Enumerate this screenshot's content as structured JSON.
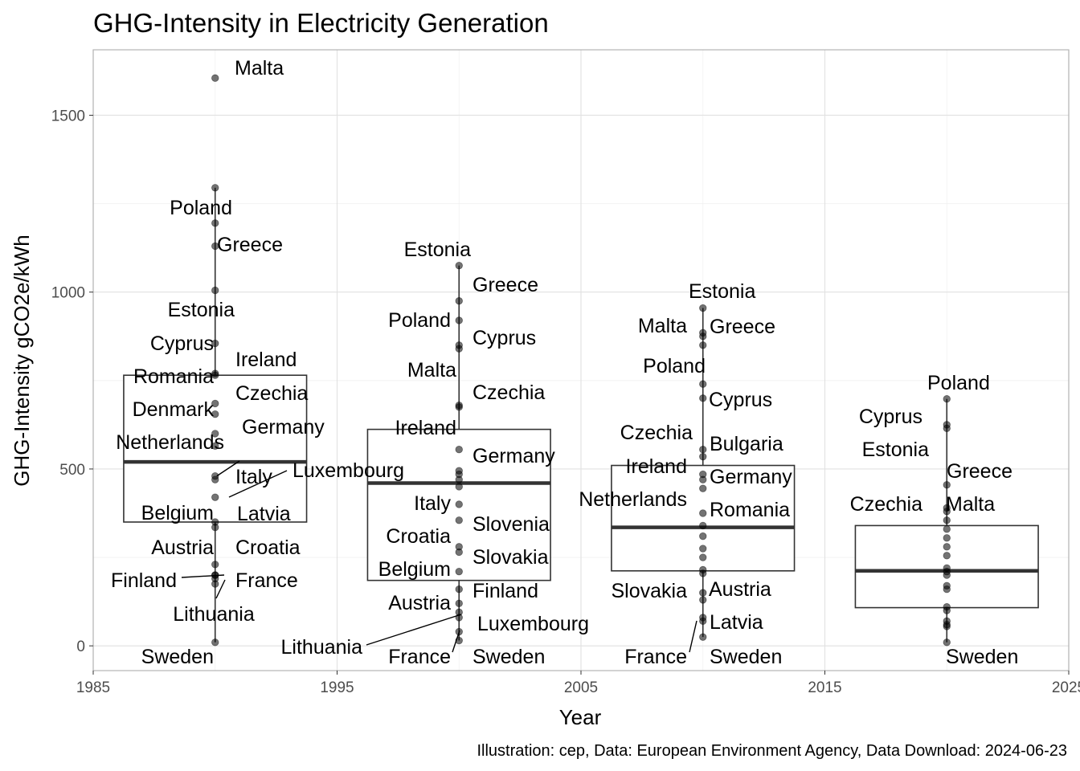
{
  "chart_data": {
    "type": "boxplot",
    "title": "GHG-Intensity in Electricity Generation",
    "xlabel": "Year",
    "ylabel": "GHG-Intensity gCO2e/kWh",
    "caption": "Illustration: cep, Data: European Environment Agency, Data Download: 2024-06-23",
    "xlim": [
      1985,
      2025
    ],
    "ylim": [
      -70,
      1685
    ],
    "x_ticks": [
      1985,
      1995,
      2005,
      2015,
      2025
    ],
    "y_ticks": [
      0,
      500,
      1000,
      1500
    ],
    "grid": true,
    "colors": {
      "box_median": "#333333",
      "points": "#000000",
      "grid": "#e1e1e1"
    },
    "groups": [
      {
        "year": 1990,
        "box": {
          "q1": 350,
          "median": 520,
          "q3": 765,
          "whisker_low": 10,
          "whisker_high": 1295
        },
        "points": [
          {
            "country": "Malta",
            "value": 1605
          },
          {
            "country": "",
            "value": 1295
          },
          {
            "country": "Poland",
            "value": 1195
          },
          {
            "country": "Greece",
            "value": 1130
          },
          {
            "country": "Estonia",
            "value": 1005
          },
          {
            "country": "Cyprus",
            "value": 855
          },
          {
            "country": "Ireland",
            "value": 770
          },
          {
            "country": "Romania",
            "value": 765
          },
          {
            "country": "Czechia",
            "value": 685
          },
          {
            "country": "Denmark",
            "value": 655
          },
          {
            "country": "Germany",
            "value": 600
          },
          {
            "country": "Netherlands",
            "value": 565
          },
          {
            "country": "Italy",
            "value": 480
          },
          {
            "country": "Luxembourg",
            "value": 420
          },
          {
            "country": "Latvia",
            "value": 470
          },
          {
            "country": "Belgium",
            "value": 350
          },
          {
            "country": "",
            "value": 335
          },
          {
            "country": "Austria",
            "value": 230
          },
          {
            "country": "Croatia",
            "value": 200
          },
          {
            "country": "Finland",
            "value": 200
          },
          {
            "country": "France",
            "value": 190
          },
          {
            "country": "Lithuania",
            "value": 175
          },
          {
            "country": "Sweden",
            "value": 10
          }
        ]
      },
      {
        "year": 2000,
        "box": {
          "q1": 185,
          "median": 460,
          "q3": 612,
          "whisker_low": 15,
          "whisker_high": 1075
        },
        "points": [
          {
            "country": "Estonia",
            "value": 1075
          },
          {
            "country": "Greece",
            "value": 975
          },
          {
            "country": "Poland",
            "value": 920
          },
          {
            "country": "Cyprus",
            "value": 840
          },
          {
            "country": "",
            "value": 850
          },
          {
            "country": "Malta",
            "value": 680
          },
          {
            "country": "Czechia",
            "value": 675
          },
          {
            "country": "Ireland",
            "value": 555
          },
          {
            "country": "Germany",
            "value": 495
          },
          {
            "country": "",
            "value": 485
          },
          {
            "country": "",
            "value": 470
          },
          {
            "country": "",
            "value": 450
          },
          {
            "country": "Italy",
            "value": 400
          },
          {
            "country": "Slovenia",
            "value": 355
          },
          {
            "country": "Croatia",
            "value": 280
          },
          {
            "country": "Slovakia",
            "value": 265
          },
          {
            "country": "Belgium",
            "value": 210
          },
          {
            "country": "Finland",
            "value": 160
          },
          {
            "country": "Austria",
            "value": 120
          },
          {
            "country": "Lithuania",
            "value": 95
          },
          {
            "country": "Luxembourg",
            "value": 80
          },
          {
            "country": "France",
            "value": 40
          },
          {
            "country": "Sweden",
            "value": 15
          }
        ]
      },
      {
        "year": 2010,
        "box": {
          "q1": 212,
          "median": 335,
          "q3": 510,
          "whisker_low": 25,
          "whisker_high": 955
        },
        "points": [
          {
            "country": "Estonia",
            "value": 955
          },
          {
            "country": "Malta",
            "value": 885
          },
          {
            "country": "Greece",
            "value": 875
          },
          {
            "country": "",
            "value": 850
          },
          {
            "country": "Poland",
            "value": 740
          },
          {
            "country": "Cyprus",
            "value": 700
          },
          {
            "country": "Bulgaria",
            "value": 555
          },
          {
            "country": "Czechia",
            "value": 535
          },
          {
            "country": "Ireland",
            "value": 485
          },
          {
            "country": "Germany",
            "value": 470
          },
          {
            "country": "Netherlands",
            "value": 445
          },
          {
            "country": "Romania",
            "value": 375
          },
          {
            "country": "",
            "value": 340
          },
          {
            "country": "",
            "value": 310
          },
          {
            "country": "",
            "value": 275
          },
          {
            "country": "",
            "value": 250
          },
          {
            "country": "Slovakia",
            "value": 215
          },
          {
            "country": "",
            "value": 205
          },
          {
            "country": "Austria",
            "value": 150
          },
          {
            "country": "",
            "value": 130
          },
          {
            "country": "Latvia",
            "value": 80
          },
          {
            "country": "France",
            "value": 70
          },
          {
            "country": "Sweden",
            "value": 25
          }
        ]
      },
      {
        "year": 2020,
        "box": {
          "q1": 108,
          "median": 212,
          "q3": 340,
          "whisker_low": 10,
          "whisker_high": 698
        },
        "points": [
          {
            "country": "Poland",
            "value": 698
          },
          {
            "country": "Cyprus",
            "value": 625
          },
          {
            "country": "Estonia",
            "value": 615
          },
          {
            "country": "Greece",
            "value": 455
          },
          {
            "country": "Czechia",
            "value": 390
          },
          {
            "country": "Malta",
            "value": 380
          },
          {
            "country": "",
            "value": 355
          },
          {
            "country": "",
            "value": 330
          },
          {
            "country": "",
            "value": 305
          },
          {
            "country": "",
            "value": 280
          },
          {
            "country": "",
            "value": 255
          },
          {
            "country": "",
            "value": 220
          },
          {
            "country": "",
            "value": 210
          },
          {
            "country": "",
            "value": 200
          },
          {
            "country": "",
            "value": 170
          },
          {
            "country": "",
            "value": 160
          },
          {
            "country": "",
            "value": 110
          },
          {
            "country": "",
            "value": 100
          },
          {
            "country": "",
            "value": 70
          },
          {
            "country": "",
            "value": 60
          },
          {
            "country": "",
            "value": 55
          },
          {
            "country": "Sweden",
            "value": 10
          }
        ]
      }
    ]
  }
}
